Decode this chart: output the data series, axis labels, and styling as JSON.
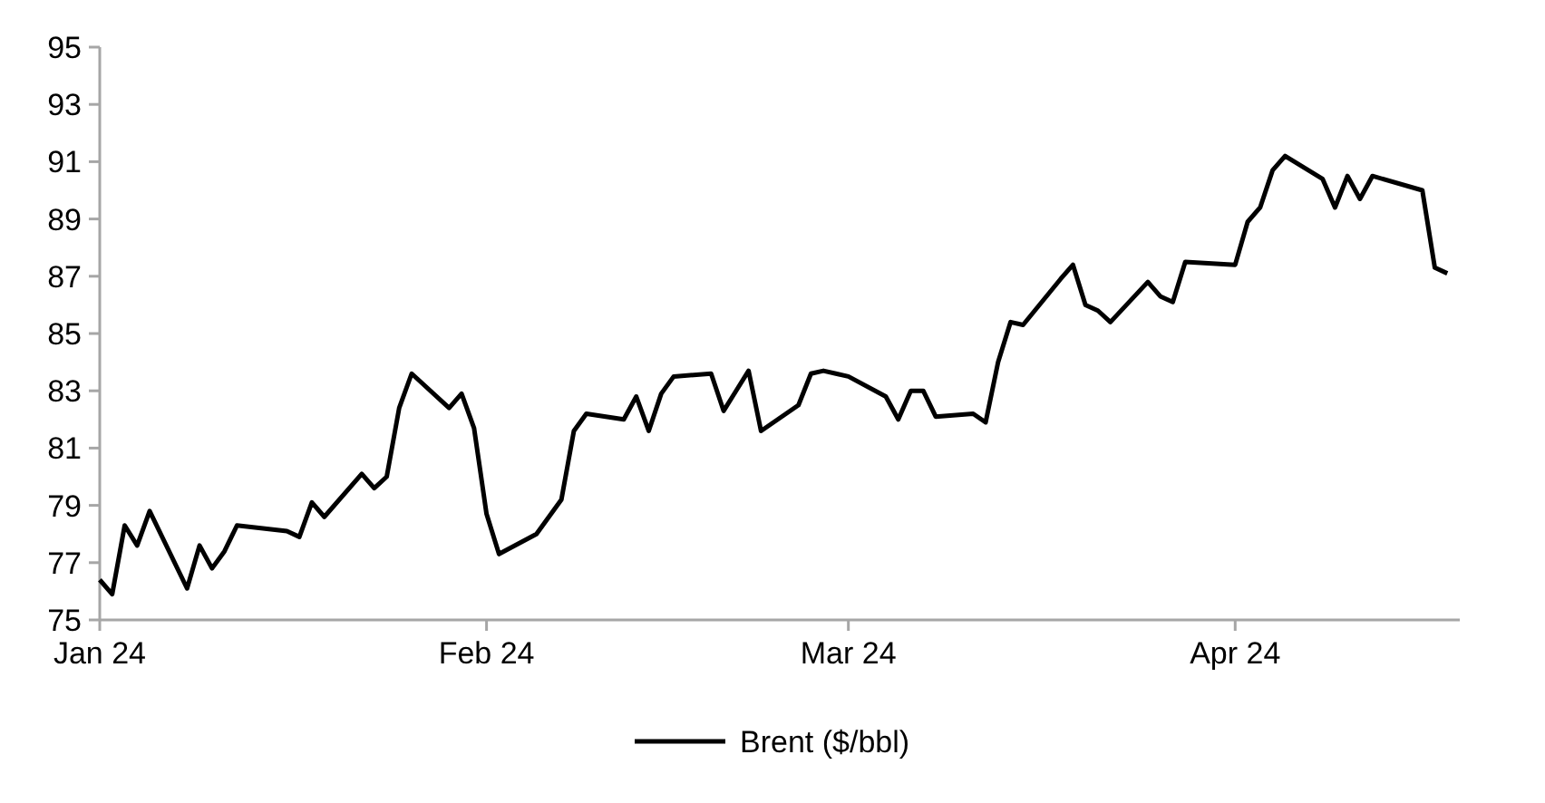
{
  "chart_data": {
    "type": "line",
    "xlim": [
      "2024-01-01",
      "2024-04-19"
    ],
    "xticks": [
      {
        "value": "2024-01-01",
        "label": "Jan 24"
      },
      {
        "value": "2024-02-01",
        "label": "Feb 24"
      },
      {
        "value": "2024-03-01",
        "label": "Mar 24"
      },
      {
        "value": "2024-04-01",
        "label": "Apr 24"
      }
    ],
    "ylim": [
      75,
      95
    ],
    "yticks": [
      75,
      77,
      79,
      81,
      83,
      85,
      87,
      89,
      91,
      93,
      95
    ],
    "grid": false,
    "legend": "bottom",
    "marker": "none",
    "line_style": "solid",
    "x": [
      "2024-01-01",
      "2024-01-02",
      "2024-01-03",
      "2024-01-04",
      "2024-01-05",
      "2024-01-08",
      "2024-01-09",
      "2024-01-10",
      "2024-01-11",
      "2024-01-12",
      "2024-01-16",
      "2024-01-17",
      "2024-01-18",
      "2024-01-19",
      "2024-01-22",
      "2024-01-23",
      "2024-01-24",
      "2024-01-25",
      "2024-01-26",
      "2024-01-29",
      "2024-01-30",
      "2024-01-31",
      "2024-02-01",
      "2024-02-02",
      "2024-02-05",
      "2024-02-06",
      "2024-02-07",
      "2024-02-08",
      "2024-02-09",
      "2024-02-12",
      "2024-02-13",
      "2024-02-14",
      "2024-02-15",
      "2024-02-16",
      "2024-02-19",
      "2024-02-20",
      "2024-02-21",
      "2024-02-22",
      "2024-02-23",
      "2024-02-26",
      "2024-02-27",
      "2024-02-28",
      "2024-02-29",
      "2024-03-01",
      "2024-03-04",
      "2024-03-05",
      "2024-03-06",
      "2024-03-07",
      "2024-03-08",
      "2024-03-11",
      "2024-03-12",
      "2024-03-13",
      "2024-03-14",
      "2024-03-15",
      "2024-03-18",
      "2024-03-19",
      "2024-03-20",
      "2024-03-21",
      "2024-03-22",
      "2024-03-25",
      "2024-03-26",
      "2024-03-27",
      "2024-03-28",
      "2024-04-01",
      "2024-04-02",
      "2024-04-03",
      "2024-04-04",
      "2024-04-05",
      "2024-04-08",
      "2024-04-09",
      "2024-04-10",
      "2024-04-11",
      "2024-04-12",
      "2024-04-16",
      "2024-04-17",
      "2024-04-18"
    ],
    "series": [
      {
        "name": "Brent ($/bbl)",
        "color": "#000000",
        "values": [
          76.4,
          75.9,
          78.3,
          77.6,
          78.8,
          76.1,
          77.6,
          76.8,
          77.4,
          78.3,
          78.1,
          77.9,
          79.1,
          78.6,
          80.1,
          79.6,
          80.0,
          82.4,
          83.6,
          82.4,
          82.9,
          81.7,
          78.7,
          77.3,
          78.0,
          78.6,
          79.2,
          81.6,
          82.2,
          82.0,
          82.8,
          81.6,
          82.9,
          83.5,
          83.6,
          82.3,
          83.0,
          83.7,
          81.6,
          82.5,
          83.6,
          83.7,
          83.6,
          83.5,
          82.8,
          82.0,
          83.0,
          83.0,
          82.1,
          82.2,
          81.9,
          84.0,
          85.4,
          85.3,
          86.9,
          87.4,
          86.0,
          85.8,
          85.4,
          86.8,
          86.3,
          86.1,
          87.5,
          87.4,
          88.9,
          89.4,
          90.7,
          91.2,
          90.4,
          89.4,
          90.5,
          89.7,
          90.5,
          90.0,
          87.3,
          87.1
        ]
      }
    ]
  }
}
